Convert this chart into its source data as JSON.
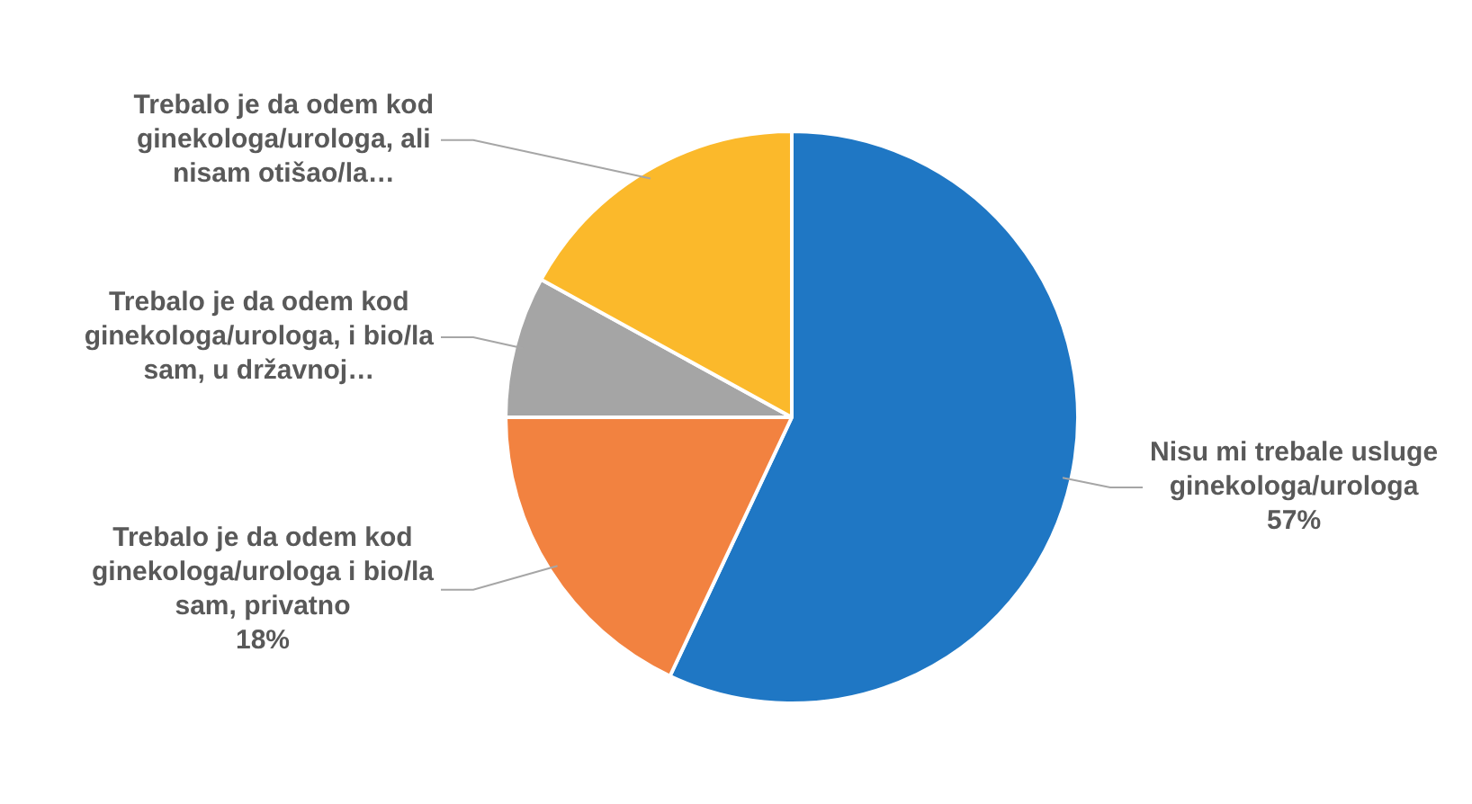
{
  "chart_data": {
    "type": "pie",
    "categories": [
      "Nisu mi trebale usluge ginekologa/urologa",
      "Trebalo je da odem kod ginekologa/urologa i bio/la sam, privatno",
      "Trebalo je da odem kod ginekologa/urologa, i bio/la sam, u državnoj…",
      "Trebalo je da odem kod ginekologa/urologa, ali nisam otišao/la…"
    ],
    "values": [
      57,
      18,
      8,
      17
    ],
    "colors": [
      "#1f77c4",
      "#f28240",
      "#a5a5a5",
      "#fbb92b"
    ],
    "value_labels": [
      "57%",
      "18%",
      null,
      null
    ],
    "legend": false
  }
}
